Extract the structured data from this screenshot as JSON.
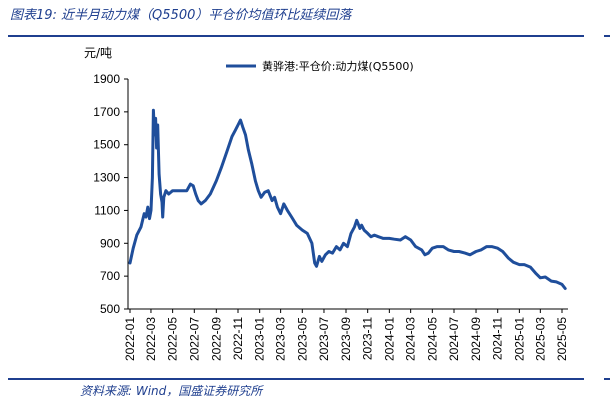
{
  "figure": {
    "title": "图表19:  近半月动力煤（Q5500）平仓价均值环比延续回落",
    "source": "资料来源:  Wind，国盛证券研究所"
  },
  "colors": {
    "accent": "#1f3f8f",
    "series": "#1f4e9b"
  },
  "chart_data": {
    "type": "line",
    "ylabel": "元/吨",
    "ylim": [
      500,
      1900
    ],
    "yticks": [
      500,
      700,
      900,
      1100,
      1300,
      1500,
      1700,
      1900
    ],
    "xticks": [
      "2022-01",
      "2022-03",
      "2022-05",
      "2022-07",
      "2022-09",
      "2022-11",
      "2023-01",
      "2023-03",
      "2023-05",
      "2023-07",
      "2023-09",
      "2023-11",
      "2024-01",
      "2024-03",
      "2024-05",
      "2024-07",
      "2024-09",
      "2024-11",
      "2025-01",
      "2025-03",
      "2025-05"
    ],
    "legend_position": "top-center",
    "series": [
      {
        "name": "黄骅港:平仓价:动力煤(Q5500)",
        "points": [
          [
            "2022-01-01",
            780
          ],
          [
            "2022-01-10",
            870
          ],
          [
            "2022-01-20",
            950
          ],
          [
            "2022-02-01",
            1000
          ],
          [
            "2022-02-10",
            1080
          ],
          [
            "2022-02-15",
            1060
          ],
          [
            "2022-02-20",
            1120
          ],
          [
            "2022-02-25",
            1050
          ],
          [
            "2022-03-01",
            1100
          ],
          [
            "2022-03-05",
            1300
          ],
          [
            "2022-03-08",
            1710
          ],
          [
            "2022-03-11",
            1560
          ],
          [
            "2022-03-14",
            1660
          ],
          [
            "2022-03-17",
            1480
          ],
          [
            "2022-03-20",
            1620
          ],
          [
            "2022-03-24",
            1320
          ],
          [
            "2022-03-28",
            1200
          ],
          [
            "2022-04-01",
            1150
          ],
          [
            "2022-04-03",
            1060
          ],
          [
            "2022-04-06",
            1180
          ],
          [
            "2022-04-12",
            1220
          ],
          [
            "2022-04-20",
            1200
          ],
          [
            "2022-05-01",
            1220
          ],
          [
            "2022-05-20",
            1220
          ],
          [
            "2022-06-10",
            1220
          ],
          [
            "2022-06-20",
            1260
          ],
          [
            "2022-06-28",
            1250
          ],
          [
            "2022-07-05",
            1200
          ],
          [
            "2022-07-12",
            1160
          ],
          [
            "2022-07-20",
            1140
          ],
          [
            "2022-08-01",
            1160
          ],
          [
            "2022-08-15",
            1200
          ],
          [
            "2022-09-01",
            1280
          ],
          [
            "2022-09-15",
            1360
          ],
          [
            "2022-10-01",
            1460
          ],
          [
            "2022-10-15",
            1550
          ],
          [
            "2022-10-25",
            1590
          ],
          [
            "2022-11-01",
            1620
          ],
          [
            "2022-11-08",
            1650
          ],
          [
            "2022-11-14",
            1610
          ],
          [
            "2022-11-22",
            1560
          ],
          [
            "2022-11-30",
            1470
          ],
          [
            "2022-12-10",
            1380
          ],
          [
            "2022-12-20",
            1280
          ],
          [
            "2022-12-28",
            1220
          ],
          [
            "2023-01-05",
            1180
          ],
          [
            "2023-01-15",
            1210
          ],
          [
            "2023-01-25",
            1220
          ],
          [
            "2023-02-05",
            1160
          ],
          [
            "2023-02-12",
            1180
          ],
          [
            "2023-02-20",
            1120
          ],
          [
            "2023-03-01",
            1080
          ],
          [
            "2023-03-10",
            1140
          ],
          [
            "2023-03-20",
            1100
          ],
          [
            "2023-04-01",
            1060
          ],
          [
            "2023-04-15",
            1010
          ],
          [
            "2023-05-01",
            980
          ],
          [
            "2023-05-15",
            960
          ],
          [
            "2023-05-28",
            900
          ],
          [
            "2023-06-05",
            780
          ],
          [
            "2023-06-10",
            760
          ],
          [
            "2023-06-18",
            820
          ],
          [
            "2023-06-25",
            790
          ],
          [
            "2023-07-05",
            830
          ],
          [
            "2023-07-15",
            850
          ],
          [
            "2023-07-25",
            840
          ],
          [
            "2023-08-05",
            880
          ],
          [
            "2023-08-15",
            860
          ],
          [
            "2023-08-25",
            900
          ],
          [
            "2023-09-05",
            880
          ],
          [
            "2023-09-15",
            960
          ],
          [
            "2023-09-25",
            1000
          ],
          [
            "2023-10-01",
            1040
          ],
          [
            "2023-10-05",
            1020
          ],
          [
            "2023-10-10",
            990
          ],
          [
            "2023-10-15",
            1010
          ],
          [
            "2023-10-22",
            980
          ],
          [
            "2023-11-01",
            960
          ],
          [
            "2023-11-10",
            940
          ],
          [
            "2023-11-20",
            950
          ],
          [
            "2023-12-01",
            940
          ],
          [
            "2023-12-15",
            930
          ],
          [
            "2024-01-01",
            930
          ],
          [
            "2024-01-15",
            925
          ],
          [
            "2024-02-01",
            920
          ],
          [
            "2024-02-15",
            940
          ],
          [
            "2024-03-01",
            920
          ],
          [
            "2024-03-15",
            880
          ],
          [
            "2024-04-01",
            860
          ],
          [
            "2024-04-10",
            830
          ],
          [
            "2024-04-20",
            840
          ],
          [
            "2024-05-01",
            870
          ],
          [
            "2024-05-15",
            880
          ],
          [
            "2024-06-01",
            880
          ],
          [
            "2024-06-15",
            860
          ],
          [
            "2024-07-01",
            850
          ],
          [
            "2024-07-15",
            850
          ],
          [
            "2024-08-01",
            840
          ],
          [
            "2024-08-15",
            830
          ],
          [
            "2024-09-01",
            850
          ],
          [
            "2024-09-15",
            860
          ],
          [
            "2024-10-01",
            880
          ],
          [
            "2024-10-15",
            880
          ],
          [
            "2024-11-01",
            870
          ],
          [
            "2024-11-15",
            850
          ],
          [
            "2024-12-01",
            810
          ],
          [
            "2024-12-15",
            785
          ],
          [
            "2025-01-01",
            770
          ],
          [
            "2025-01-15",
            770
          ],
          [
            "2025-02-01",
            755
          ],
          [
            "2025-02-15",
            720
          ],
          [
            "2025-03-01",
            690
          ],
          [
            "2025-03-15",
            695
          ],
          [
            "2025-04-01",
            670
          ],
          [
            "2025-04-15",
            665
          ],
          [
            "2025-05-01",
            650
          ],
          [
            "2025-05-10",
            625
          ]
        ]
      }
    ]
  }
}
